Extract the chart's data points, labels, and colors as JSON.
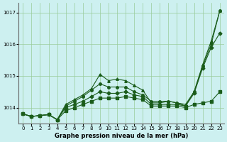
{
  "title": "Graphe pression niveau de la mer (hPa)",
  "bg_color": "#cdf0f0",
  "grid_color": "#99cc99",
  "line_color": "#1a5c1a",
  "ylim": [
    1013.5,
    1017.3
  ],
  "yticks": [
    1014,
    1015,
    1016,
    1017
  ],
  "xlim": [
    -0.5,
    23.5
  ],
  "xticks": [
    0,
    1,
    2,
    3,
    4,
    5,
    6,
    7,
    8,
    9,
    10,
    11,
    12,
    13,
    14,
    15,
    16,
    17,
    18,
    19,
    20,
    21,
    22,
    23
  ],
  "series": [
    [
      1013.8,
      1013.72,
      1013.75,
      1013.78,
      1013.62,
      1014.0,
      1014.1,
      1014.2,
      1014.35,
      1014.5,
      1014.45,
      1014.45,
      1014.5,
      1014.4,
      1014.35,
      1014.1,
      1014.1,
      1014.1,
      1014.1,
      1014.05,
      1014.45,
      1015.25,
      1015.9,
      1016.35
    ],
    [
      1013.8,
      1013.72,
      1013.75,
      1013.78,
      1013.62,
      1014.1,
      1014.25,
      1014.4,
      1014.6,
      1015.05,
      1014.85,
      1014.9,
      1014.85,
      1014.7,
      1014.55,
      1014.15,
      1014.15,
      1014.2,
      1014.15,
      1014.1,
      1014.5,
      1015.35,
      1016.1,
      1017.05
    ],
    [
      1013.8,
      1013.72,
      1013.75,
      1013.78,
      1013.62,
      1014.05,
      1014.2,
      1014.35,
      1014.55,
      1014.75,
      1014.65,
      1014.65,
      1014.65,
      1014.5,
      1014.4,
      1014.2,
      1014.2,
      1014.2,
      1014.15,
      1014.05,
      1014.5,
      1015.3,
      1016.0,
      1017.05
    ],
    [
      1013.8,
      1013.72,
      1013.75,
      1013.78,
      1013.62,
      1013.9,
      1014.0,
      1014.1,
      1014.2,
      1014.3,
      1014.3,
      1014.3,
      1014.35,
      1014.3,
      1014.25,
      1014.05,
      1014.05,
      1014.05,
      1014.05,
      1014.0,
      1014.1,
      1014.15,
      1014.2,
      1014.5
    ]
  ],
  "markers": [
    "D",
    "^",
    "o",
    "s"
  ],
  "marker_sizes": [
    2.5,
    2.5,
    2.5,
    2.5
  ]
}
